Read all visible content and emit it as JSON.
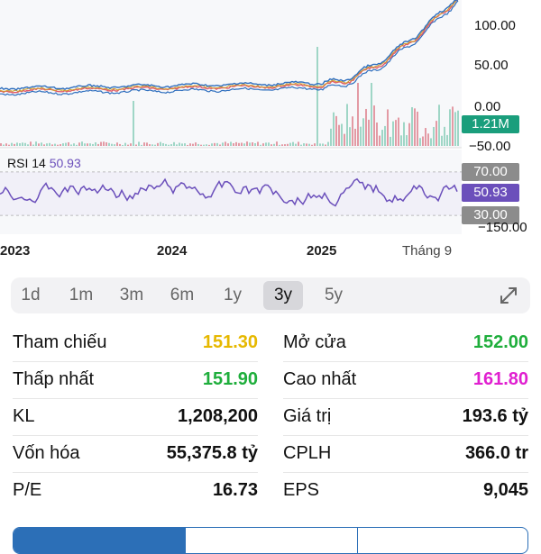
{
  "chart": {
    "y_ticks": [
      "100.00",
      "50.00",
      "0.00",
      "−50.00",
      "−150.00"
    ],
    "volume_badge": "1.21M",
    "rsi": {
      "label": "RSI 14",
      "value": "50.93",
      "upper": "70.00",
      "lower": "30.00"
    },
    "x_ticks": [
      "2023",
      "2024",
      "2025",
      "Tháng 9"
    ],
    "colors": {
      "price": "#2f6fbe",
      "ma": "#e05a6a",
      "rsi": "#6b4fbb",
      "volume": "#1a9e7c"
    }
  },
  "range_selector": {
    "options": [
      "1d",
      "1m",
      "3m",
      "6m",
      "1y",
      "3y",
      "5y"
    ],
    "active": "3y",
    "expand_icon": "expand-arrows-icon"
  },
  "stats": {
    "left": [
      {
        "label": "Tham chiếu",
        "value": "151.30",
        "color": "#e6b800"
      },
      {
        "label": "Thấp nhất",
        "value": "151.90",
        "color": "#1fae3c"
      },
      {
        "label": "KL",
        "value": "1,208,200",
        "color": "#111111"
      },
      {
        "label": "Vốn hóa",
        "value": "55,375.8 tỷ",
        "color": "#111111"
      },
      {
        "label": "P/E",
        "value": "16.73",
        "color": "#111111"
      }
    ],
    "right": [
      {
        "label": "Mở cửa",
        "value": "152.00",
        "color": "#1fae3c"
      },
      {
        "label": "Cao nhất",
        "value": "161.80",
        "color": "#e020d0"
      },
      {
        "label": "Giá trị",
        "value": "193.6 tỷ",
        "color": "#111111"
      },
      {
        "label": "CPLH",
        "value": "366.0 tr",
        "color": "#111111"
      },
      {
        "label": "EPS",
        "value": "9,045",
        "color": "#111111"
      }
    ]
  }
}
